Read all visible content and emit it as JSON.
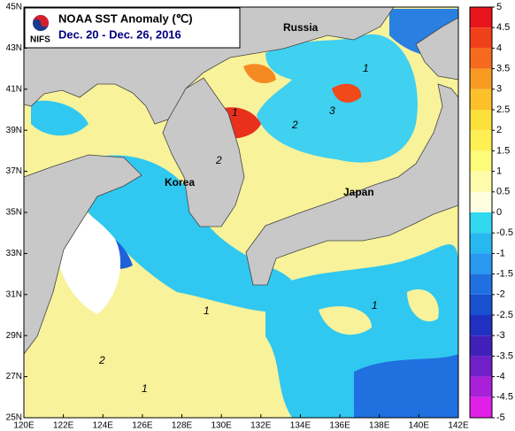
{
  "map": {
    "title": "NOAA SST Anomaly (℃)",
    "subtitle": "Dec. 20 - Dec. 26, 2016",
    "logo": "NIFS",
    "places": [
      "Russia",
      "Korea",
      "Japan"
    ],
    "contour_labels": [
      "1",
      "3",
      "2",
      "1",
      "2",
      "1",
      "1",
      "2",
      "1"
    ],
    "lonlim": [
      120,
      142
    ],
    "latlim": [
      25,
      45
    ],
    "lonticks": [
      {
        "value": 120,
        "label": "120E"
      },
      {
        "value": 122,
        "label": "122E"
      },
      {
        "value": 124,
        "label": "124E"
      },
      {
        "value": 126,
        "label": "126E"
      },
      {
        "value": 128,
        "label": "128E"
      },
      {
        "value": 130,
        "label": "130E"
      },
      {
        "value": 132,
        "label": "132E"
      },
      {
        "value": 134,
        "label": "134E"
      },
      {
        "value": 136,
        "label": "136E"
      },
      {
        "value": 138,
        "label": "138E"
      },
      {
        "value": 140,
        "label": "140E"
      },
      {
        "value": 142,
        "label": "142E"
      }
    ],
    "latticks": [
      {
        "value": 25,
        "label": "25N"
      },
      {
        "value": 27,
        "label": "27N"
      },
      {
        "value": 29,
        "label": "29N"
      },
      {
        "value": 31,
        "label": "31N"
      },
      {
        "value": 33,
        "label": "33N"
      },
      {
        "value": 35,
        "label": "35N"
      },
      {
        "value": 37,
        "label": "37N"
      },
      {
        "value": 39,
        "label": "39N"
      },
      {
        "value": 41,
        "label": "41N"
      },
      {
        "value": 43,
        "label": "43N"
      },
      {
        "value": 45,
        "label": "45N"
      }
    ],
    "colorbar": {
      "range": [
        -5,
        5
      ],
      "ticks": [
        5,
        4.5,
        4,
        3.5,
        3,
        2.5,
        2,
        1.5,
        1,
        0.5,
        0,
        -0.5,
        -1,
        -1.5,
        -2,
        -2.5,
        -3,
        -3.5,
        -4,
        -4.5,
        -5
      ],
      "colors": [
        "#e8141c",
        "#f0401a",
        "#f56a1e",
        "#f89a22",
        "#fbc02a",
        "#fde03a",
        "#fef052",
        "#fefa7a",
        "#fefcaa",
        "#fffee0",
        "#30d8f0",
        "#28b8f0",
        "#2898f0",
        "#2070e0",
        "#1850d0",
        "#2030c0",
        "#4020b8",
        "#7020c8",
        "#a820d8",
        "#e020e8"
      ]
    }
  }
}
